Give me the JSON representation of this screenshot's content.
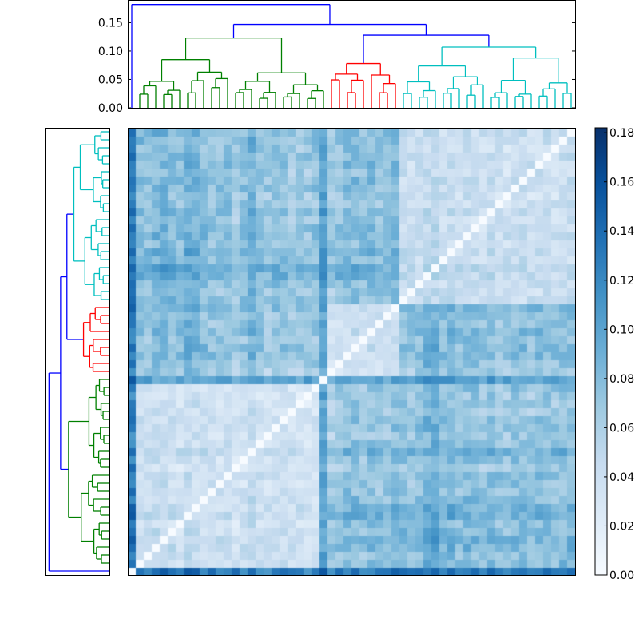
{
  "chart_data": {
    "type": "heatmap",
    "title": "",
    "description": "Clustered distance matrix heatmap with hierarchical-clustering dendrograms (top and left) and a colorbar",
    "n_leaves": 56,
    "colormap": "Blues",
    "colorbar": {
      "min": 0.0,
      "max": 0.182,
      "ticks": [
        0.0,
        0.02,
        0.04,
        0.06,
        0.08,
        0.1,
        0.12,
        0.14,
        0.16,
        0.18
      ],
      "tick_labels": [
        "0.00",
        "0.02",
        "0.04",
        "0.06",
        "0.08",
        "0.10",
        "0.12",
        "0.14",
        "0.16",
        "0.18"
      ]
    },
    "top_dendrogram": {
      "yaxis_ticks": [
        0.0,
        0.05,
        0.1,
        0.15
      ],
      "yaxis_tick_labels": [
        "0.00",
        "0.05",
        "0.10",
        "0.15"
      ],
      "ylim": [
        0.0,
        0.19
      ],
      "cluster_colors": {
        "above_threshold": "#0000ff",
        "green": "#008000",
        "red": "#ff0000",
        "cyan": "#00bfbf"
      },
      "clusters": [
        {
          "color": "blue",
          "leaves": 1,
          "leaf_range": [
            0,
            0
          ]
        },
        {
          "color": "green",
          "leaves": 24,
          "leaf_range": [
            1,
            24
          ]
        },
        {
          "color": "red",
          "leaves": 9,
          "leaf_range": [
            25,
            33
          ]
        },
        {
          "color": "cyan",
          "leaves": 22,
          "leaf_range": [
            34,
            55
          ]
        }
      ],
      "root_height": 0.182,
      "merges_blue": [
        {
          "height": 0.182,
          "note": "root: leaf 0 joined with rest"
        },
        {
          "height": 0.147,
          "note": "green cluster joined with red+cyan"
        },
        {
          "height": 0.128,
          "note": "red joined with cyan"
        }
      ],
      "green_top_height": 0.123,
      "red_top_height": 0.078,
      "cyan_top_height": 0.107
    },
    "left_dendrogram": {
      "orientation": "left",
      "note": "Same tree as top dendrogram, rotated; cyan cluster at top, red middle, green bottom, single blue leaf at bottom"
    },
    "heatmap": {
      "rows": 56,
      "cols": 56,
      "diagonal_value": 0.0,
      "value_range": [
        0.0,
        0.182
      ],
      "seed": 7,
      "leaf_profiles": [
        0.16,
        0.07,
        0.06,
        0.08,
        0.08,
        0.07,
        0.06,
        0.09,
        0.08,
        0.07,
        0.06,
        0.06,
        0.07,
        0.05,
        0.06,
        0.09,
        0.06,
        0.05,
        0.06,
        0.06,
        0.05,
        0.05,
        0.05,
        0.06,
        0.11,
        0.05,
        0.06,
        0.07,
        0.07,
        0.06,
        0.07,
        0.06,
        0.06,
        0.08,
        0.07,
        0.06,
        0.07,
        0.09,
        0.1,
        0.07,
        0.08,
        0.06,
        0.07,
        0.07,
        0.06,
        0.07,
        0.06,
        0.06,
        0.07,
        0.07,
        0.06,
        0.07,
        0.07,
        0.06,
        0.07,
        0.07
      ],
      "cluster_bounds": [
        0,
        1,
        25,
        34,
        56
      ],
      "within_cluster_scale": 0.45,
      "between_cluster_scale": 1.0
    }
  }
}
